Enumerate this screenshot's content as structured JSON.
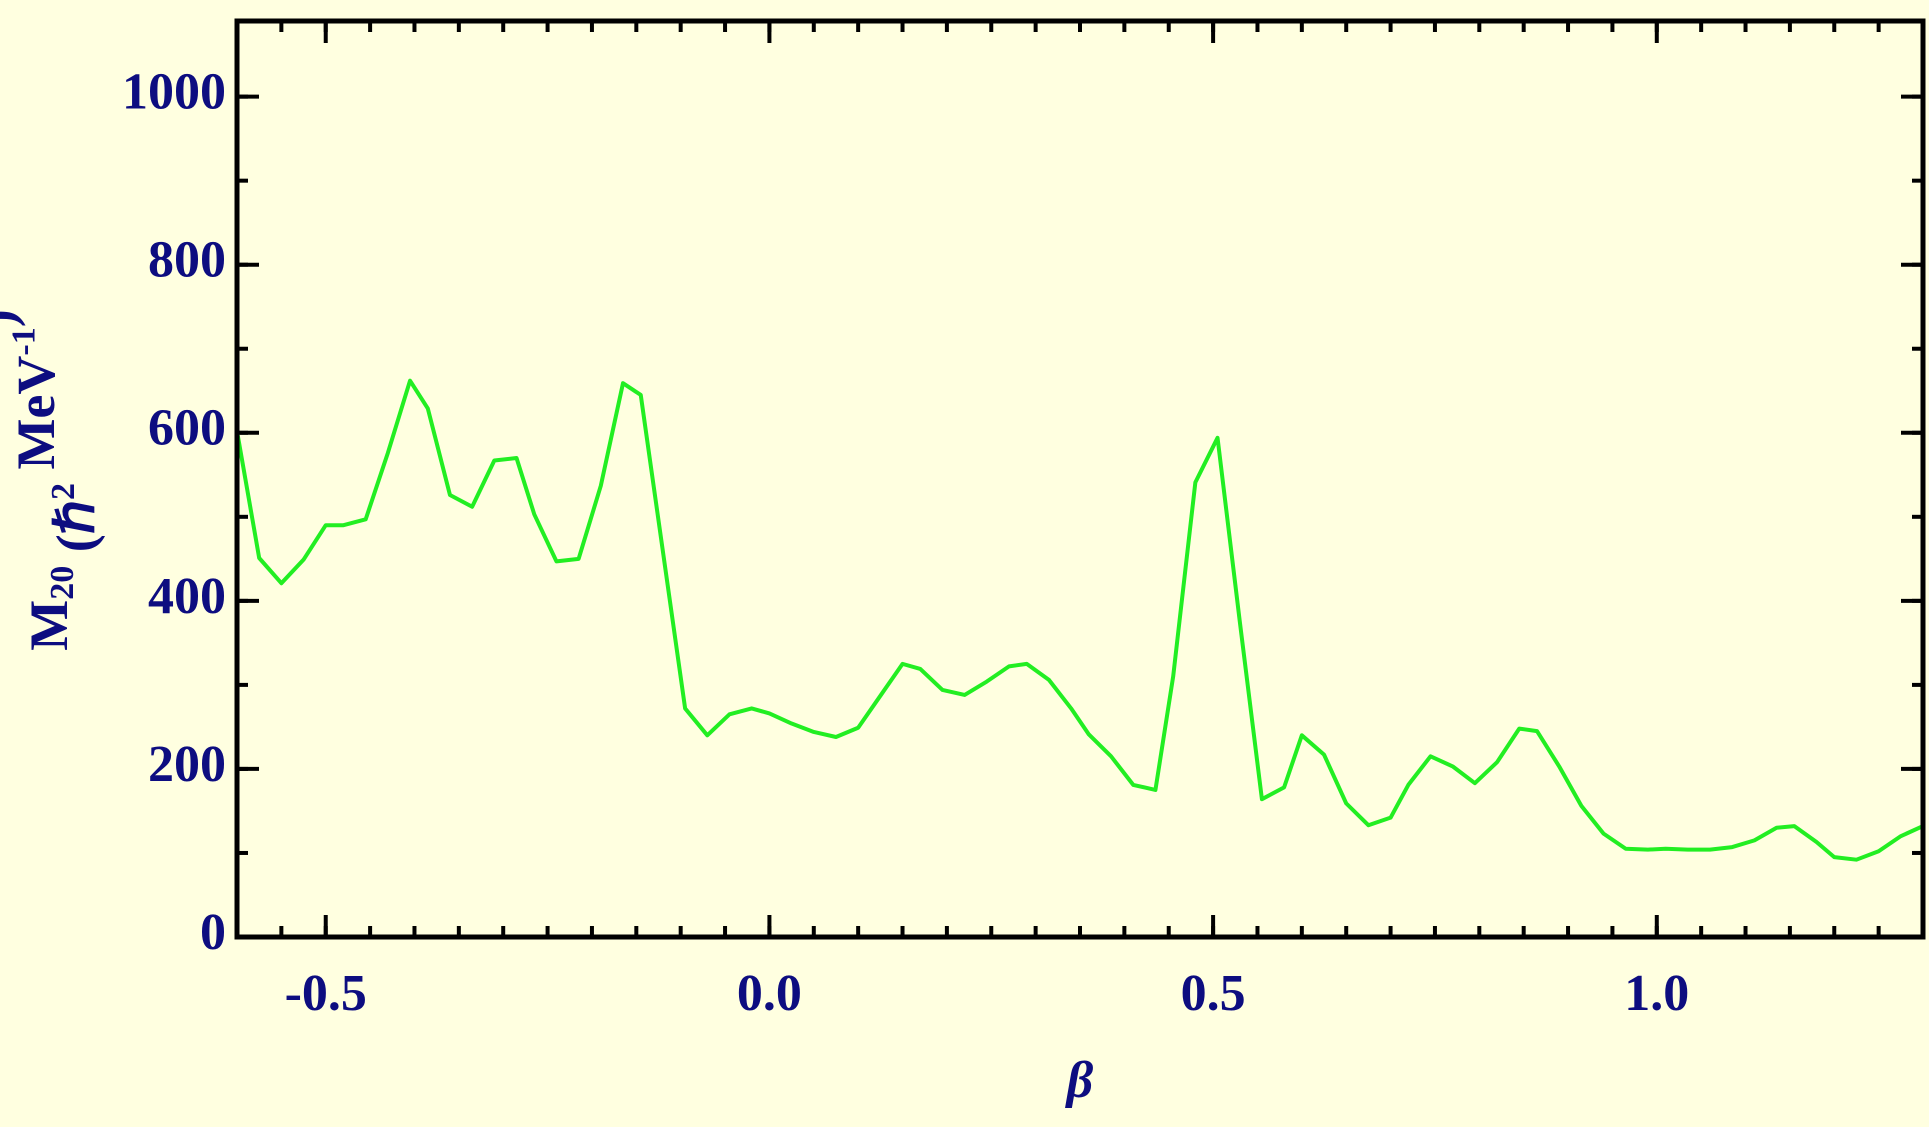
{
  "chart_data": {
    "type": "line",
    "xlabel": "β",
    "ylabel": [
      "M",
      "20",
      " (ℏ",
      "2",
      " MeV",
      "-1",
      ")"
    ],
    "x": [
      -0.6,
      -0.575,
      -0.55,
      -0.525,
      -0.5,
      -0.48,
      -0.455,
      -0.43,
      -0.405,
      -0.385,
      -0.36,
      -0.335,
      -0.31,
      -0.285,
      -0.265,
      -0.24,
      -0.215,
      -0.19,
      -0.165,
      -0.145,
      -0.095,
      -0.07,
      -0.045,
      -0.02,
      0.0,
      0.025,
      0.05,
      0.075,
      0.1,
      0.125,
      0.15,
      0.17,
      0.195,
      0.22,
      0.245,
      0.27,
      0.29,
      0.315,
      0.34,
      0.36,
      0.385,
      0.41,
      0.435,
      0.455,
      0.48,
      0.505,
      0.53,
      0.555,
      0.58,
      0.6,
      0.625,
      0.65,
      0.675,
      0.7,
      0.72,
      0.745,
      0.77,
      0.795,
      0.82,
      0.845,
      0.865,
      0.89,
      0.915,
      0.94,
      0.965,
      0.99,
      1.01,
      1.035,
      1.06,
      1.085,
      1.11,
      1.135,
      1.155,
      1.18,
      1.2,
      1.225,
      1.25,
      1.275,
      1.3
    ],
    "series": [
      {
        "color": "#22ee22",
        "values": [
          602,
          451,
          421,
          449,
          490,
          490,
          497,
          576,
          662,
          629,
          526,
          512,
          567,
          570,
          503,
          447,
          450,
          537,
          659,
          645,
          272,
          240,
          265,
          272,
          266,
          254,
          244,
          238,
          249,
          287,
          325,
          319,
          294,
          288,
          304,
          322,
          325,
          306,
          272,
          241,
          215,
          181,
          175,
          310,
          541,
          594,
          376,
          164,
          178,
          240,
          217,
          159,
          133,
          142,
          181,
          215,
          203,
          183,
          208,
          248,
          245,
          203,
          156,
          123,
          105,
          104,
          105,
          104,
          104,
          107,
          115,
          130,
          132,
          113,
          95,
          92,
          102,
          120,
          132
        ]
      }
    ],
    "xlim": [
      -0.6,
      1.3
    ],
    "ylim": [
      0,
      1090
    ],
    "xticks": [
      -0.5,
      {
        "value": 0,
        "label": "0.0"
      },
      0.5,
      {
        "value": 1,
        "label": "1.0"
      }
    ],
    "yticks": [
      0,
      200,
      400,
      600,
      800,
      1000
    ],
    "x_minor_step": 0.05,
    "y_minor_step": 100,
    "background": "#ffffe0",
    "label_color": "#0d0d80"
  }
}
